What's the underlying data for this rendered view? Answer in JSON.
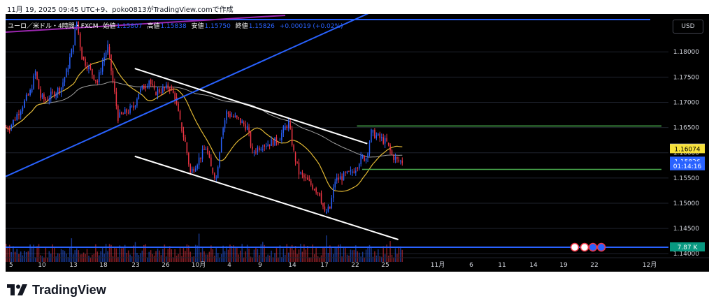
{
  "caption": "11月 19, 2025 09:45 UTC+9、poko0813がTradingView.comで作成",
  "legend": {
    "symbol": "ユーロ／米ドル・4時間・FXCM",
    "open_label": "始値",
    "open": "1.15807",
    "high_label": "高値",
    "high": "1.15838",
    "low_label": "安値",
    "low": "1.15750",
    "close_label": "終値",
    "close": "1.15826",
    "change": "+0.00019 (+0.02%)"
  },
  "currency_button": "USD",
  "price_axis": {
    "ticks": [
      "1.18000",
      "1.17500",
      "1.17000",
      "1.16500",
      "1.16000",
      "1.15500",
      "1.15000",
      "1.14500",
      "1.14000"
    ],
    "tags": [
      {
        "text": "1.16083",
        "value": 1.16083,
        "bg": "#d1d4dc",
        "fg": "#000000"
      },
      {
        "text": "1.16074",
        "value": 1.16074,
        "bg": "#f7e13a",
        "fg": "#000000"
      },
      {
        "text": "1.15826",
        "value": 1.15826,
        "bg": "#2962ff",
        "fg": "#ffffff"
      },
      {
        "text": "01:14:16",
        "value": 1.15735,
        "bg": "#2962ff",
        "fg": "#ffffff"
      }
    ],
    "volume_tag": {
      "text": "7.87 K",
      "bg": "#089981",
      "fg": "#ffffff"
    }
  },
  "time_axis": {
    "labels": [
      "5",
      "10",
      "13",
      "18",
      "23",
      "26",
      "10月",
      "4",
      "9",
      "14",
      "17",
      "22",
      "25",
      "11月",
      "6",
      "11",
      "14",
      "19",
      "22",
      "12月"
    ]
  },
  "brand": "TradingView",
  "colors": {
    "up": "#2962ff",
    "down": "#f23645",
    "ma_fast": "#e0b733",
    "ma_slow": "#9e9e9e",
    "trendline": "#2962ff",
    "channel": "#ffffff",
    "levels": "#4caf50",
    "background": "#000000"
  },
  "chart_data": {
    "type": "candlestick",
    "symbol": "EUR/USD",
    "timeframe": "4h",
    "ylim": [
      1.1392,
      1.1875
    ],
    "close_series": [
      {
        "date": "2025-09-04",
        "close": 1.165
      },
      {
        "date": "2025-09-05",
        "close": 1.172
      },
      {
        "date": "2025-09-09",
        "close": 1.176
      },
      {
        "date": "2025-09-10",
        "close": 1.171
      },
      {
        "date": "2025-09-11",
        "close": 1.1705
      },
      {
        "date": "2025-09-12",
        "close": 1.173
      },
      {
        "date": "2025-09-15",
        "close": 1.176
      },
      {
        "date": "2025-09-16",
        "close": 1.18
      },
      {
        "date": "2025-09-17",
        "close": 1.186
      },
      {
        "date": "2025-09-18",
        "close": 1.179
      },
      {
        "date": "2025-09-19",
        "close": 1.174
      },
      {
        "date": "2025-09-22",
        "close": 1.178
      },
      {
        "date": "2025-09-23",
        "close": 1.181
      },
      {
        "date": "2025-09-24",
        "close": 1.174
      },
      {
        "date": "2025-09-25",
        "close": 1.167
      },
      {
        "date": "2025-09-26",
        "close": 1.169
      },
      {
        "date": "2025-09-29",
        "close": 1.172
      },
      {
        "date": "2025-09-30",
        "close": 1.173
      },
      {
        "date": "2025-10-01",
        "close": 1.1745
      },
      {
        "date": "2025-10-02",
        "close": 1.172
      },
      {
        "date": "2025-10-03",
        "close": 1.173
      },
      {
        "date": "2025-10-06",
        "close": 1.171
      },
      {
        "date": "2025-10-07",
        "close": 1.166
      },
      {
        "date": "2025-10-08",
        "close": 1.162
      },
      {
        "date": "2025-10-09",
        "close": 1.156
      },
      {
        "date": "2025-10-10",
        "close": 1.161
      },
      {
        "date": "2025-10-13",
        "close": 1.157
      },
      {
        "date": "2025-10-14",
        "close": 1.155
      },
      {
        "date": "2025-10-15",
        "close": 1.1635
      },
      {
        "date": "2025-10-16",
        "close": 1.168
      },
      {
        "date": "2025-10-17",
        "close": 1.166
      },
      {
        "date": "2025-10-20",
        "close": 1.165
      },
      {
        "date": "2025-10-21",
        "close": 1.16
      },
      {
        "date": "2025-10-22",
        "close": 1.161
      },
      {
        "date": "2025-10-23",
        "close": 1.1615
      },
      {
        "date": "2025-10-24",
        "close": 1.1625
      },
      {
        "date": "2025-10-27",
        "close": 1.1645
      },
      {
        "date": "2025-10-28",
        "close": 1.166
      },
      {
        "date": "2025-10-29",
        "close": 1.16
      },
      {
        "date": "2025-10-30",
        "close": 1.156
      },
      {
        "date": "2025-10-31",
        "close": 1.153
      },
      {
        "date": "2025-11-03",
        "close": 1.152
      },
      {
        "date": "2025-11-04",
        "close": 1.148
      },
      {
        "date": "2025-11-05",
        "close": 1.149
      },
      {
        "date": "2025-11-06",
        "close": 1.1545
      },
      {
        "date": "2025-11-07",
        "close": 1.156
      },
      {
        "date": "2025-11-10",
        "close": 1.157
      },
      {
        "date": "2025-11-11",
        "close": 1.159
      },
      {
        "date": "2025-11-12",
        "close": 1.159
      },
      {
        "date": "2025-11-13",
        "close": 1.164
      },
      {
        "date": "2025-11-14",
        "close": 1.162
      },
      {
        "date": "2025-11-17",
        "close": 1.1595
      },
      {
        "date": "2025-11-18",
        "close": 1.1585
      },
      {
        "date": "2025-11-19",
        "close": 1.15826
      }
    ],
    "indicators": [
      {
        "name": "short moving average",
        "color": "#e0b733",
        "last": 1.16074
      },
      {
        "name": "long moving average",
        "color": "#9e9e9e",
        "last": 1.16083
      }
    ],
    "drawings": [
      {
        "kind": "trendline",
        "color": "#2962ff",
        "points": [
          [
            "2025-09-04",
            1.1553
          ],
          [
            "2025-11-26",
            1.1935
          ]
        ]
      },
      {
        "kind": "horizontal",
        "color": "#2962ff",
        "value": 1.1864
      },
      {
        "kind": "channel-upper",
        "color": "#ffffff",
        "points": [
          [
            "2025-09-29",
            1.1767
          ],
          [
            "2025-11-13",
            1.1618
          ]
        ]
      },
      {
        "kind": "channel-lower",
        "color": "#ffffff",
        "points": [
          [
            "2025-09-29",
            1.1593
          ],
          [
            "2025-11-19",
            1.1428
          ]
        ]
      },
      {
        "kind": "horizontal",
        "color": "#4caf50",
        "value": 1.1653,
        "from": "2025-11-11"
      },
      {
        "kind": "horizontal",
        "color": "#4caf50",
        "value": 1.1567,
        "from": "2025-11-12"
      }
    ]
  }
}
